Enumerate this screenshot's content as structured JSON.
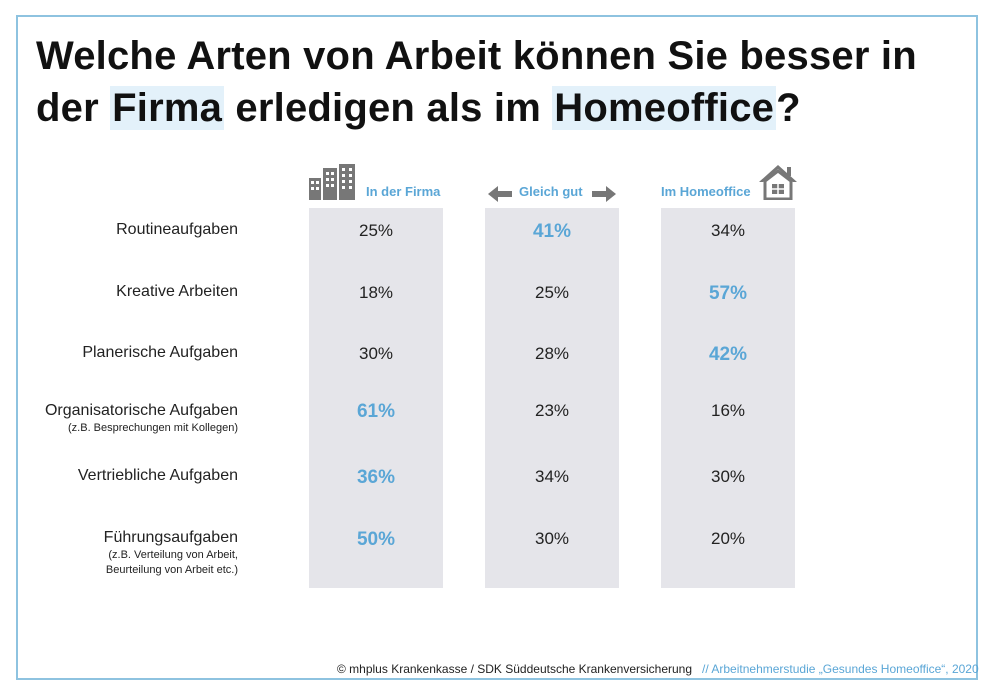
{
  "title": {
    "part1": "Welche Arten von Arbeit können Sie besser in der ",
    "highlight1": "Firma",
    "part2": " erledigen als im ",
    "highlight2": "Homeoffice",
    "part3": "?"
  },
  "columns": [
    {
      "label": "In der Firma",
      "icon": "buildings-icon"
    },
    {
      "label": "Gleich gut",
      "icon": "double-arrow-icon"
    },
    {
      "label": "Im Homeoffice",
      "icon": "house-icon"
    }
  ],
  "rows": [
    {
      "label": "Routineaufgaben",
      "sub": ""
    },
    {
      "label": "Kreative Arbeiten",
      "sub": ""
    },
    {
      "label": "Planerische Aufgaben",
      "sub": ""
    },
    {
      "label": "Organisatorische Aufgaben",
      "sub": "(z.B. Besprechungen mit Kollegen)"
    },
    {
      "label": "Vertriebliche Aufgaben",
      "sub": ""
    },
    {
      "label": "Führungsaufgaben",
      "sub": "(z.B. Verteilung von Arbeit,\nBeurteilung von Arbeit etc.)"
    }
  ],
  "chart_data": {
    "type": "table",
    "categories": [
      "Routineaufgaben",
      "Kreative Arbeiten",
      "Planerische Aufgaben",
      "Organisatorische Aufgaben",
      "Vertriebliche Aufgaben",
      "Führungsaufgaben"
    ],
    "series": [
      {
        "name": "In der Firma",
        "values": [
          "25%",
          "18%",
          "30%",
          "61%",
          "36%",
          "50%"
        ]
      },
      {
        "name": "Gleich gut",
        "values": [
          "41%",
          "25%",
          "28%",
          "23%",
          "34%",
          "30%"
        ]
      },
      {
        "name": "Im Homeoffice",
        "values": [
          "34%",
          "57%",
          "42%",
          "16%",
          "30%",
          "20%"
        ]
      }
    ],
    "highlighted": [
      [
        false,
        true,
        false
      ],
      [
        false,
        false,
        true
      ],
      [
        false,
        false,
        true
      ],
      [
        true,
        false,
        false
      ],
      [
        true,
        false,
        false
      ],
      [
        true,
        false,
        false
      ]
    ],
    "highlight_color": "#5aa6d6"
  },
  "footer": {
    "copyright": "© mhplus Krankenkasse / SDK Süddeutsche Krankenversicherung",
    "study": "// Arbeitnehmerstudie „Gesundes Homeoffice“, 2020"
  },
  "colors": {
    "accent": "#5aa6d6",
    "column_bg": "#e5e5ea",
    "frame": "#8ec3e0",
    "icon": "#777777"
  }
}
